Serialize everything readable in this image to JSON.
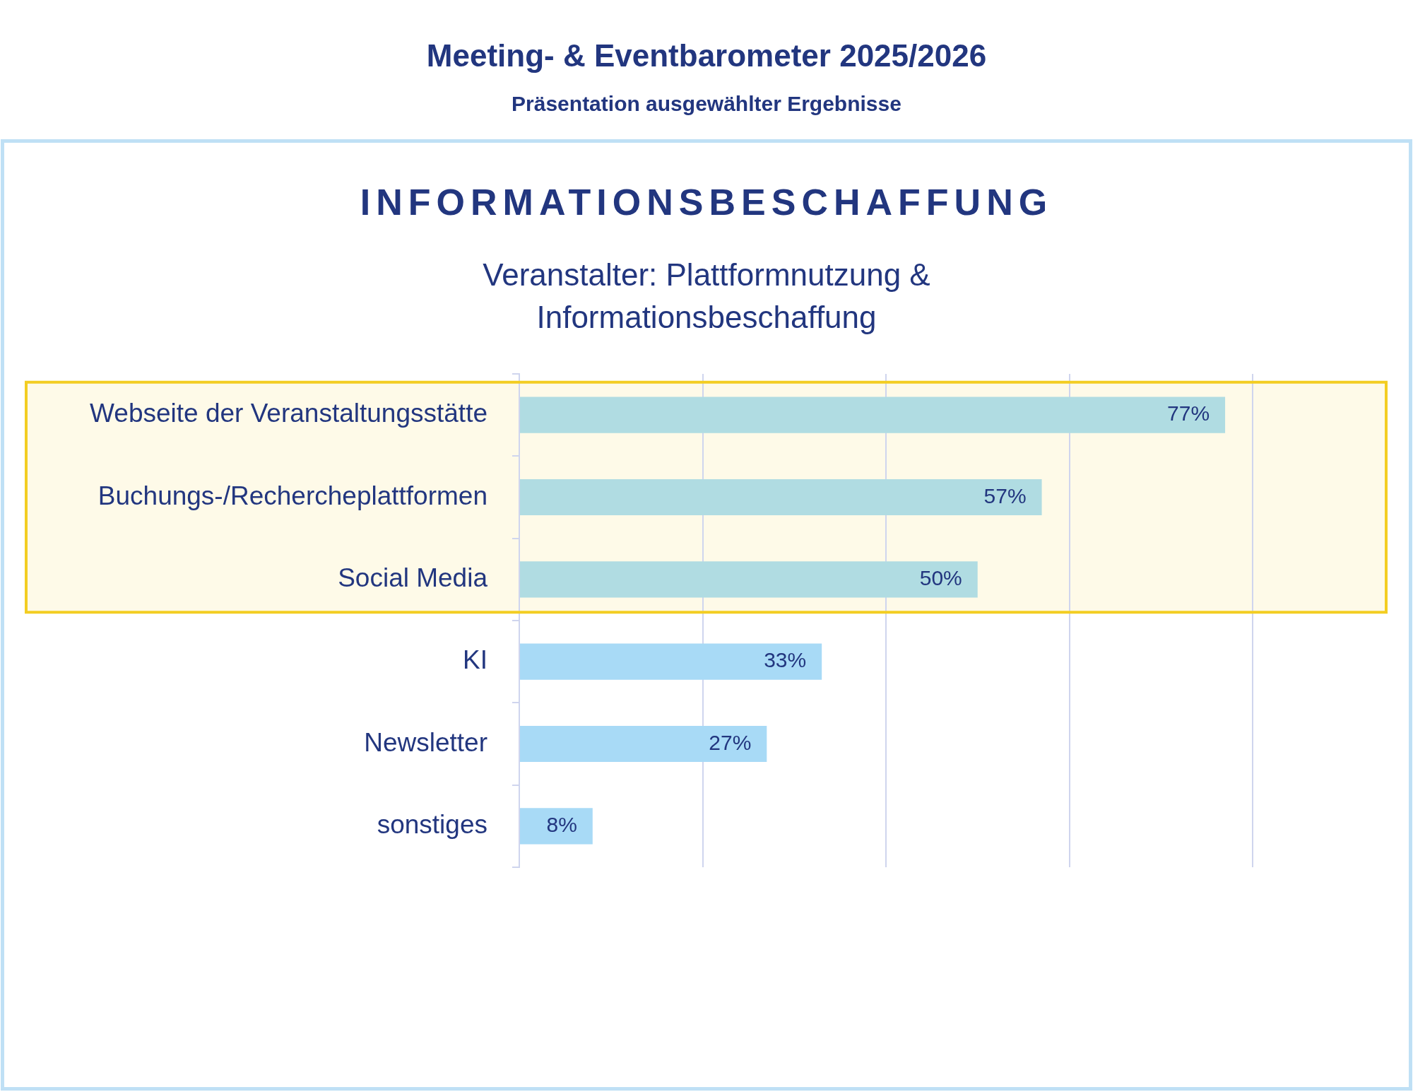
{
  "chart_data": {
    "type": "bar",
    "orientation": "horizontal",
    "title": "INFORMATIONSBESCHAFFUNG",
    "subtitle": "Veranstalter: Plattformnutzung & Informationsbeschaffung",
    "annotations": [
      "Meeting- & Eventbarometer 2025/2026",
      "Präsentation ausgewählter Ergebnisse"
    ],
    "categories": [
      "Webseite der Veranstaltungsstätte",
      "Buchungs-/Rechercheplattformen",
      "Social Media",
      "KI",
      "Newsletter",
      "sonstiges"
    ],
    "values": [
      77,
      57,
      50,
      33,
      27,
      8
    ],
    "colors": [
      "#b0dce2",
      "#b0dce2",
      "#b0dce2",
      "#a8daf6",
      "#a8daf6",
      "#a8daf6"
    ],
    "value_labels": [
      "77%",
      "57%",
      "50%",
      "33%",
      "27%",
      "8%"
    ],
    "xlim": [
      0,
      80
    ],
    "xticks": [
      0,
      20,
      40,
      60,
      80
    ],
    "tick_labels": "y",
    "grid": "x",
    "bands": [
      {
        "axis": "y",
        "from": "Webseite der Veranstaltungsstätte",
        "to": "Social Media",
        "color": "#f3cd22"
      }
    ]
  }
}
